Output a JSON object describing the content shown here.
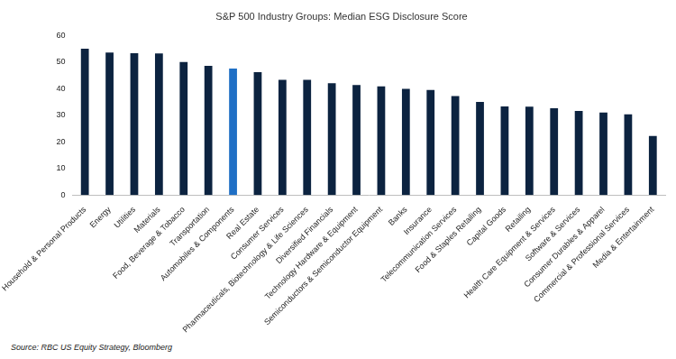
{
  "chart_data": {
    "type": "bar",
    "title": "S&P 500 Industry Groups: Median ESG Disclosure Score",
    "categories": [
      "Household & Personal Products",
      "Energy",
      "Utilities",
      "Materials",
      "Food, Beverage & Tobacco",
      "Transportation",
      "Automobiles & Components",
      "Real Estate",
      "Consumer Services",
      "Pharmaceuticals, Biotechnology & Life Sciences",
      "Diversified Financials",
      "Technology Hardware & Equipment",
      "Semiconductors & Semiconductor Equipment",
      "Banks",
      "Insurance",
      "Telecommunication Services",
      "Food & Staples Retailing",
      "Capital Goods",
      "Retailing",
      "Health Care Equipment & Services",
      "Software & Services",
      "Consumer Durables & Apparel",
      "Commercial & Professional Services",
      "Media & Entertainment"
    ],
    "values": [
      55,
      53.5,
      53.3,
      53.2,
      50,
      48.5,
      47.5,
      46.2,
      43.3,
      43.3,
      42,
      41.3,
      40.8,
      39.9,
      39.5,
      37.2,
      35,
      33.3,
      33.2,
      32.6,
      31.6,
      31,
      30.3,
      22.2
    ],
    "colors": [
      "#0c2340",
      "#0c2340",
      "#0c2340",
      "#0c2340",
      "#0c2340",
      "#0c2340",
      "#1f6fc5",
      "#0c2340",
      "#0c2340",
      "#0c2340",
      "#0c2340",
      "#0c2340",
      "#0c2340",
      "#0c2340",
      "#0c2340",
      "#0c2340",
      "#0c2340",
      "#0c2340",
      "#0c2340",
      "#0c2340",
      "#0c2340",
      "#0c2340",
      "#0c2340",
      "#0c2340"
    ],
    "ylim": [
      0,
      60
    ],
    "yticks": [
      0,
      10,
      20,
      30,
      40,
      50,
      60
    ],
    "grid": false,
    "annotations": [
      "Source: RBC US Equity Strategy, Bloomberg"
    ]
  }
}
